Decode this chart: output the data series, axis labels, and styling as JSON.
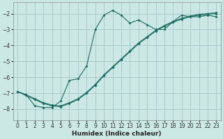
{
  "xlabel": "Humidex (Indice chaleur)",
  "bg_color": "#cce8e4",
  "line_color": "#1a6b60",
  "grid_color": "#aaccca",
  "xlim": [
    -0.5,
    23.5
  ],
  "ylim": [
    -8.7,
    -1.3
  ],
  "yticks": [
    -8,
    -7,
    -6,
    -5,
    -4,
    -3,
    -2
  ],
  "xticks": [
    0,
    1,
    2,
    3,
    4,
    5,
    6,
    7,
    8,
    9,
    10,
    11,
    12,
    13,
    14,
    15,
    16,
    17,
    18,
    19,
    20,
    21,
    22,
    23
  ],
  "line_wavy_x": [
    0,
    1,
    2,
    3,
    4,
    5,
    6,
    7,
    8,
    9,
    10,
    11,
    12,
    13,
    14,
    15,
    16,
    17,
    18,
    19,
    20,
    21,
    22,
    23
  ],
  "line_wavy_y": [
    -6.9,
    -7.1,
    -7.8,
    -7.9,
    -7.9,
    -7.5,
    -6.2,
    -6.1,
    -5.3,
    -3.0,
    -2.1,
    -1.8,
    -2.1,
    -2.6,
    -2.4,
    -2.7,
    -3.0,
    -3.0,
    -2.5,
    -2.1,
    -2.2,
    -2.2,
    -2.1,
    -2.2
  ],
  "line_straight1_x": [
    0,
    1,
    2,
    3,
    4,
    5,
    6,
    7,
    8,
    9,
    10,
    11,
    12,
    13,
    14,
    15,
    16,
    17,
    18,
    19,
    20,
    21,
    22,
    23
  ],
  "line_straight1_y": [
    -6.9,
    -7.15,
    -7.4,
    -7.65,
    -7.8,
    -7.85,
    -7.65,
    -7.4,
    -7.0,
    -6.5,
    -5.9,
    -5.4,
    -4.9,
    -4.4,
    -3.9,
    -3.5,
    -3.1,
    -2.8,
    -2.55,
    -2.35,
    -2.2,
    -2.1,
    -2.05,
    -2.0
  ],
  "line_straight2_x": [
    0,
    1,
    2,
    3,
    4,
    5,
    6,
    7,
    8,
    9,
    10,
    11,
    12,
    13,
    14,
    15,
    16,
    17,
    18,
    19,
    20,
    21,
    22,
    23
  ],
  "line_straight2_y": [
    -6.9,
    -7.1,
    -7.35,
    -7.6,
    -7.75,
    -7.8,
    -7.6,
    -7.35,
    -6.95,
    -6.45,
    -5.85,
    -5.35,
    -4.85,
    -4.35,
    -3.85,
    -3.45,
    -3.05,
    -2.75,
    -2.5,
    -2.3,
    -2.15,
    -2.05,
    -2.0,
    -1.95
  ]
}
